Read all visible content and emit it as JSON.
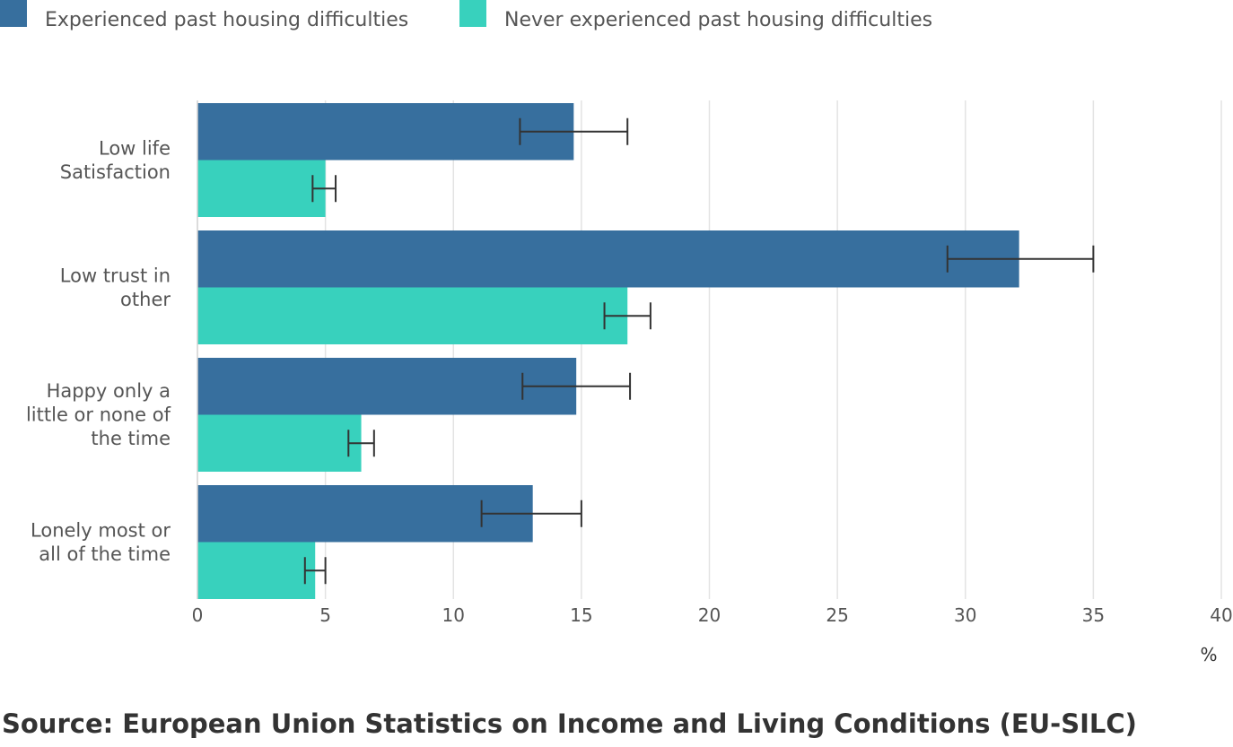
{
  "chart_data": {
    "type": "bar",
    "orientation": "horizontal",
    "categories": [
      [
        "Low life",
        "Satisfaction"
      ],
      [
        "Low trust in",
        "other"
      ],
      [
        "Happy only a",
        "little or none of",
        "the time"
      ],
      [
        "Lonely most or",
        "all of the time"
      ]
    ],
    "series": [
      {
        "name": "Experienced past housing difficulties",
        "color": "#376f9e",
        "values": [
          14.7,
          32.1,
          14.8,
          13.1
        ],
        "error_low": [
          12.6,
          29.3,
          12.7,
          11.1
        ],
        "error_high": [
          16.8,
          35.0,
          16.9,
          15.0
        ]
      },
      {
        "name": "Never experienced past housing difficulties",
        "color": "#38d1bd",
        "values": [
          5.0,
          16.8,
          6.4,
          4.6
        ],
        "error_low": [
          4.5,
          15.9,
          5.9,
          4.2
        ],
        "error_high": [
          5.4,
          17.7,
          6.9,
          5.0
        ]
      }
    ],
    "xlim": [
      0,
      40
    ],
    "xticks": [
      "0",
      "5",
      "10",
      "15",
      "20",
      "25",
      "30",
      "35",
      "40"
    ],
    "xlabel": "%",
    "grid": true,
    "legend_position": "top-left",
    "error_bar_color": "#333333"
  },
  "source": "Source: European Union Statistics on Income and Living Conditions (EU-SILC)"
}
